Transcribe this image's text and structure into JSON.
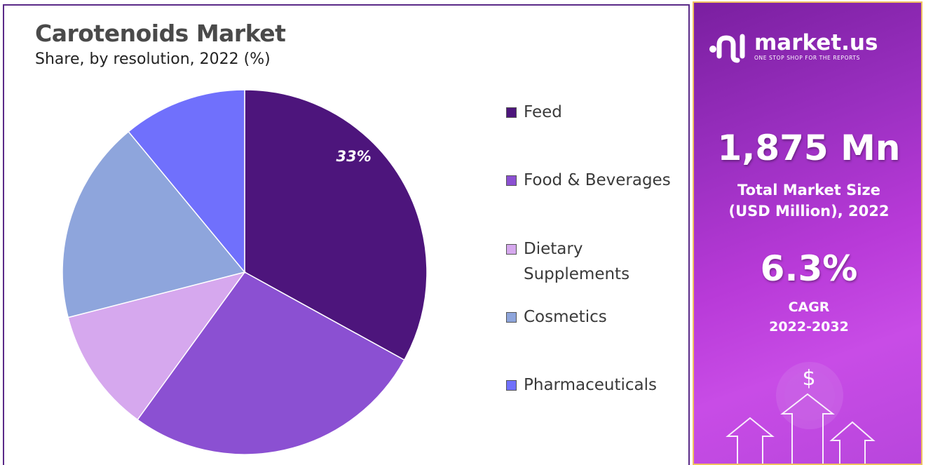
{
  "chart_data": {
    "type": "pie",
    "title": "Carotenoids Market",
    "subtitle": "Share, by resolution, 2022 (%)",
    "categories": [
      "Feed",
      "Food & Beverages",
      "Dietary\nSupplements",
      "Cosmetics",
      "Pharmaceuticals"
    ],
    "values": [
      33,
      27,
      11,
      18,
      11
    ],
    "colors": [
      "#4d157c",
      "#8b50d2",
      "#d6a8ee",
      "#8ea5dc",
      "#7070fc"
    ],
    "data_labels": [
      "33%",
      "",
      "",
      "",
      ""
    ],
    "legend_position": "right"
  },
  "side_panel": {
    "brand_name": "market.us",
    "brand_tagline": "ONE STOP SHOP FOR THE REPORTS",
    "market_size_value": "1,875 Mn",
    "market_size_label_line1": "Total Market Size",
    "market_size_label_line2": "(USD Million), 2022",
    "cagr_value": "6.3%",
    "cagr_label": "CAGR",
    "cagr_period": "2022-2032",
    "currency_symbol": "$"
  }
}
